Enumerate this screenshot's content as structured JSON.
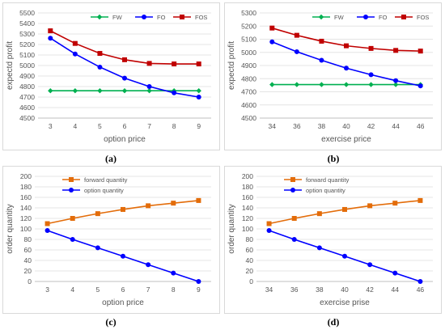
{
  "panels": [
    {
      "label": "(a)"
    },
    {
      "label": "(b)"
    },
    {
      "label": "(c)"
    },
    {
      "label": "(d)"
    }
  ],
  "chart_data": [
    {
      "type": "line",
      "xlabel": "option price",
      "ylabel": "expectd profit",
      "categories": [
        "3",
        "4",
        "5",
        "6",
        "7",
        "8",
        "9"
      ],
      "ylim": [
        4500,
        5500
      ],
      "ystep": 100,
      "grid": true,
      "legend": "top",
      "series": [
        {
          "name": "FW",
          "color": "#00b050",
          "marker": "diamond",
          "values": [
            4760,
            4760,
            4760,
            4760,
            4760,
            4760,
            4760
          ]
        },
        {
          "name": "FO",
          "color": "#0000ff",
          "marker": "circle",
          "values": [
            5260,
            5110,
            4985,
            4880,
            4800,
            4740,
            4700
          ]
        },
        {
          "name": "FOS",
          "color": "#c00000",
          "marker": "square",
          "values": [
            5330,
            5210,
            5115,
            5055,
            5020,
            5015,
            5015
          ]
        }
      ]
    },
    {
      "type": "line",
      "xlabel": "exercise price",
      "ylabel": "expectd profit",
      "categories": [
        "34",
        "36",
        "38",
        "40",
        "42",
        "44",
        "46"
      ],
      "ylim": [
        4500,
        5300
      ],
      "ystep": 100,
      "grid": true,
      "legend": "top",
      "series": [
        {
          "name": "FW",
          "color": "#00b050",
          "marker": "diamond",
          "values": [
            4755,
            4755,
            4755,
            4755,
            4755,
            4755,
            4755
          ]
        },
        {
          "name": "FO",
          "color": "#0000ff",
          "marker": "circle",
          "values": [
            5080,
            5005,
            4940,
            4880,
            4830,
            4785,
            4745
          ]
        },
        {
          "name": "FOS",
          "color": "#c00000",
          "marker": "square",
          "values": [
            5185,
            5130,
            5085,
            5050,
            5030,
            5015,
            5010
          ]
        }
      ]
    },
    {
      "type": "line",
      "xlabel": "option price",
      "ylabel": "order quantity",
      "categories": [
        "3",
        "4",
        "5",
        "6",
        "7",
        "8",
        "9"
      ],
      "ylim": [
        0,
        200
      ],
      "ystep": 20,
      "grid": true,
      "legend": "top-left",
      "series": [
        {
          "name": "forward quantity",
          "color": "#e36c09",
          "marker": "square",
          "values": [
            110,
            120,
            129,
            137,
            144,
            149,
            154
          ]
        },
        {
          "name": "option quantity",
          "color": "#0000ff",
          "marker": "circle",
          "values": [
            97,
            80,
            64,
            48,
            32,
            16,
            0
          ]
        }
      ]
    },
    {
      "type": "line",
      "xlabel": "exercise prise",
      "ylabel": "order quantity",
      "categories": [
        "34",
        "36",
        "38",
        "40",
        "42",
        "44",
        "46"
      ],
      "ylim": [
        0,
        200
      ],
      "ystep": 20,
      "grid": true,
      "legend": "top-left",
      "series": [
        {
          "name": "forward quantity",
          "color": "#e36c09",
          "marker": "square",
          "values": [
            110,
            120,
            129,
            137,
            144,
            149,
            154
          ]
        },
        {
          "name": "option quantity",
          "color": "#0000ff",
          "marker": "circle",
          "values": [
            97,
            80,
            64,
            48,
            32,
            16,
            0
          ]
        }
      ]
    }
  ]
}
